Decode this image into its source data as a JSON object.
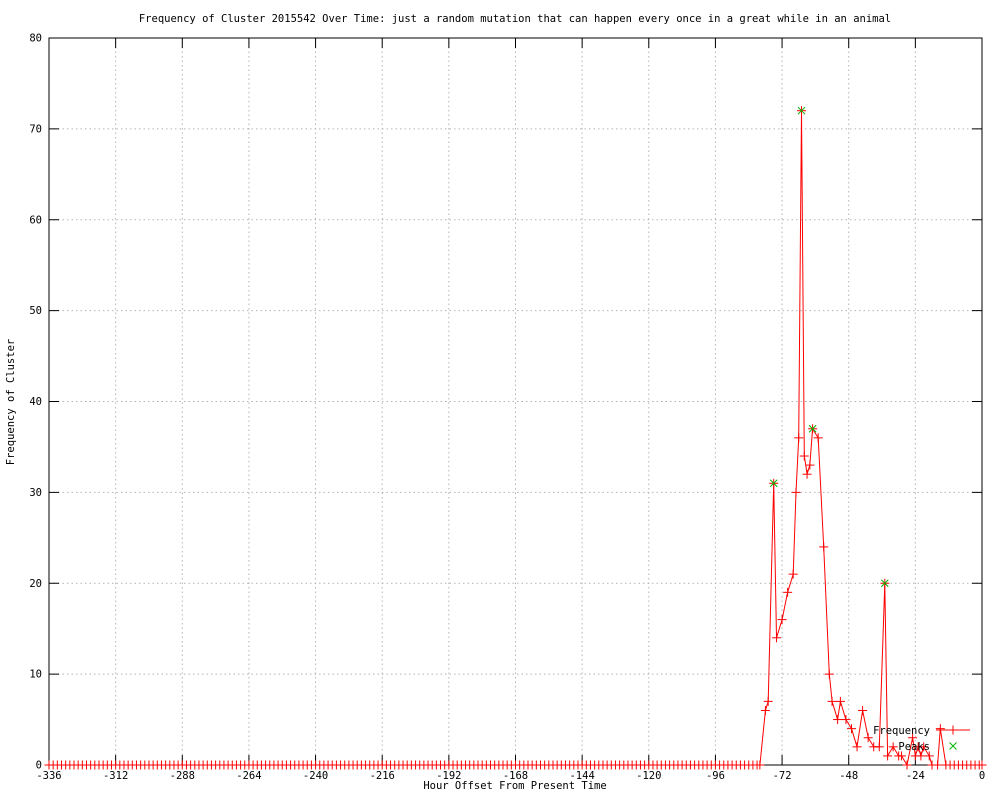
{
  "title": "Frequency of Cluster 2015542 Over Time: just a random mutation that can happen every once in a great while in an animal",
  "chart_data": {
    "type": "line",
    "title": "Frequency of Cluster 2015542 Over Time: just a random mutation that can happen every once in a great while in an animal",
    "xlabel": "Hour Offset From Present Time",
    "ylabel": "Frequency of Cluster",
    "xlim": [
      -336,
      0
    ],
    "ylim": [
      0,
      80
    ],
    "x_ticks": [
      -336,
      -312,
      -288,
      -264,
      -240,
      -216,
      -192,
      -168,
      -144,
      -120,
      -96,
      -72,
      -48,
      -24,
      0
    ],
    "y_ticks": [
      0,
      10,
      20,
      30,
      40,
      50,
      60,
      70,
      80
    ],
    "grid": true,
    "legend_position": "inside bottom-right",
    "colors": {
      "frequency": "#ff0000",
      "peaks": "#00b400",
      "grid": "#b4b4b4",
      "axis": "#000000",
      "background": "#ffffff"
    },
    "series": [
      {
        "name": "Frequency",
        "style": "linespoints",
        "marker": "plus",
        "color": "#ff0000",
        "zero_baseline": {
          "from": -336,
          "to": -81,
          "step": 1.5,
          "value": 0
        },
        "points": [
          [
            -80,
            0
          ],
          [
            -78,
            6
          ],
          [
            -77,
            7
          ],
          [
            -75,
            31
          ],
          [
            -74,
            14
          ],
          [
            -72,
            16
          ],
          [
            -70,
            19
          ],
          [
            -68,
            21
          ],
          [
            -67,
            30
          ],
          [
            -66,
            36
          ],
          [
            -65,
            72
          ],
          [
            -64,
            34
          ],
          [
            -63,
            32
          ],
          [
            -62,
            33
          ],
          [
            -61,
            37
          ],
          [
            -59,
            36
          ],
          [
            -57,
            24
          ],
          [
            -55,
            10
          ],
          [
            -54,
            7
          ],
          [
            -52,
            5
          ],
          [
            -51,
            7
          ],
          [
            -49,
            5
          ],
          [
            -47,
            4
          ],
          [
            -45,
            2
          ],
          [
            -43,
            6
          ],
          [
            -41,
            3
          ],
          [
            -39,
            2
          ],
          [
            -37,
            2
          ],
          [
            -35,
            20
          ],
          [
            -34,
            1
          ],
          [
            -32,
            2
          ],
          [
            -30,
            1
          ],
          [
            -29,
            1
          ],
          [
            -27,
            0
          ],
          [
            -25,
            3
          ],
          [
            -24,
            1
          ],
          [
            -23,
            2
          ],
          [
            -22,
            1
          ],
          [
            -21,
            2
          ],
          [
            -19,
            1
          ],
          [
            -18,
            0
          ],
          [
            -16,
            0
          ],
          [
            -15,
            4
          ],
          [
            -13,
            0
          ],
          [
            -11.5,
            0
          ],
          [
            -10,
            0
          ],
          [
            -8.5,
            0
          ],
          [
            -7,
            0
          ],
          [
            -5.5,
            0
          ],
          [
            -4,
            0
          ],
          [
            -2.5,
            0
          ],
          [
            -1,
            0
          ],
          [
            0,
            0
          ]
        ]
      },
      {
        "name": "Peaks",
        "style": "points",
        "marker": "x",
        "color": "#00b400",
        "points": [
          [
            -75,
            31
          ],
          [
            -65,
            72
          ],
          [
            -61,
            37
          ],
          [
            -35,
            20
          ]
        ]
      }
    ]
  },
  "legend": {
    "frequency_label": "Frequency",
    "peaks_label": "Peaks"
  }
}
